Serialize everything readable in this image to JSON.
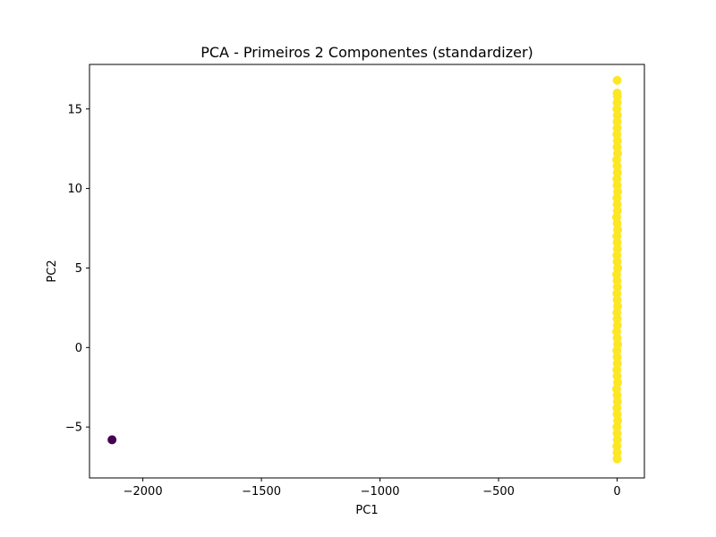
{
  "chart_data": {
    "type": "scatter",
    "title": "PCA - Primeiros 2 Componentes (standardizer)",
    "xlabel": "PC1",
    "ylabel": "PC2",
    "xlim": [
      -2225,
      115
    ],
    "ylim": [
      -8.2,
      17.8
    ],
    "x_ticks": [
      -2000,
      -1500,
      -1000,
      -500,
      0
    ],
    "x_tick_labels": [
      "−2000",
      "−1500",
      "−1000",
      "−500",
      "0"
    ],
    "y_ticks": [
      -5,
      0,
      5,
      10,
      15
    ],
    "y_tick_labels": [
      "−5",
      "0",
      "5",
      "10",
      "15"
    ],
    "grid": false,
    "legend": "none",
    "colormap": "viridis",
    "series": [
      {
        "color": "#440154",
        "points": [
          [
            -2130,
            -5.8
          ]
        ]
      },
      {
        "color": "#fde725",
        "points": [
          [
            0,
            16.8
          ],
          [
            0,
            16.0
          ],
          [
            1,
            15.8
          ],
          [
            0,
            15.4
          ],
          [
            -1,
            15.0
          ],
          [
            1,
            14.6
          ],
          [
            0,
            14.2
          ],
          [
            0,
            13.8
          ],
          [
            -1,
            13.4
          ],
          [
            1,
            13.0
          ],
          [
            0,
            12.6
          ],
          [
            2,
            12.2
          ],
          [
            -2,
            11.8
          ],
          [
            0,
            11.4
          ],
          [
            1,
            11.0
          ],
          [
            -1,
            10.6
          ],
          [
            0,
            10.2
          ],
          [
            2,
            9.8
          ],
          [
            -1,
            9.4
          ],
          [
            0,
            9.0
          ],
          [
            1,
            8.6
          ],
          [
            -2,
            8.2
          ],
          [
            0,
            7.8
          ],
          [
            2,
            7.4
          ],
          [
            -1,
            7.0
          ],
          [
            0,
            6.6
          ],
          [
            1,
            6.2
          ],
          [
            -1,
            5.8
          ],
          [
            0,
            5.4
          ],
          [
            2,
            5.0
          ],
          [
            -2,
            4.6
          ],
          [
            0,
            4.2
          ],
          [
            1,
            3.8
          ],
          [
            -1,
            3.4
          ],
          [
            0,
            3.0
          ],
          [
            2,
            2.6
          ],
          [
            -1,
            2.2
          ],
          [
            0,
            1.8
          ],
          [
            1,
            1.4
          ],
          [
            -2,
            1.0
          ],
          [
            0,
            0.6
          ],
          [
            2,
            0.2
          ],
          [
            -1,
            -0.2
          ],
          [
            0,
            -0.6
          ],
          [
            1,
            -1.0
          ],
          [
            -1,
            -1.4
          ],
          [
            0,
            -1.8
          ],
          [
            2,
            -2.2
          ],
          [
            -2,
            -2.6
          ],
          [
            0,
            -3.0
          ],
          [
            1,
            -3.4
          ],
          [
            -1,
            -3.8
          ],
          [
            0,
            -4.2
          ],
          [
            2,
            -4.6
          ],
          [
            -1,
            -5.0
          ],
          [
            0,
            -5.4
          ],
          [
            1,
            -5.8
          ],
          [
            -1,
            -6.2
          ],
          [
            0,
            -6.6
          ],
          [
            0,
            -7.0
          ]
        ]
      }
    ]
  }
}
